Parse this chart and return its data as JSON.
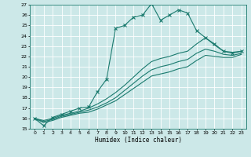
{
  "title": "",
  "xlabel": "Humidex (Indice chaleur)",
  "xlim": [
    -0.5,
    23.5
  ],
  "ylim": [
    15,
    27
  ],
  "xticks": [
    0,
    1,
    2,
    3,
    4,
    5,
    6,
    7,
    8,
    9,
    10,
    11,
    12,
    13,
    14,
    15,
    16,
    17,
    18,
    19,
    20,
    21,
    22,
    23
  ],
  "yticks": [
    15,
    16,
    17,
    18,
    19,
    20,
    21,
    22,
    23,
    24,
    25,
    26,
    27
  ],
  "bg_color": "#cce8e8",
  "line_color": "#1a7a6e",
  "grid_color": "#ffffff",
  "lines": [
    {
      "x": [
        0,
        1,
        2,
        3,
        4,
        5,
        6,
        7,
        8,
        9,
        10,
        11,
        12,
        13,
        14,
        15,
        16,
        17,
        18,
        19,
        20,
        21,
        22,
        23
      ],
      "y": [
        16.0,
        15.3,
        16.1,
        16.4,
        16.7,
        17.0,
        17.1,
        18.6,
        19.8,
        24.7,
        25.0,
        25.8,
        26.0,
        27.1,
        25.5,
        26.0,
        26.5,
        26.2,
        24.5,
        23.8,
        23.2,
        22.5,
        22.3,
        22.5
      ],
      "marker": "x"
    },
    {
      "x": [
        0,
        1,
        2,
        3,
        4,
        5,
        6,
        7,
        8,
        9,
        10,
        11,
        12,
        13,
        14,
        15,
        16,
        17,
        18,
        19,
        20,
        21,
        22,
        23
      ],
      "y": [
        16.0,
        15.8,
        16.0,
        16.3,
        16.5,
        16.7,
        17.0,
        17.4,
        17.9,
        18.5,
        19.2,
        20.0,
        20.8,
        21.5,
        21.8,
        22.0,
        22.3,
        22.5,
        23.2,
        23.8,
        23.1,
        22.5,
        22.4,
        22.5
      ],
      "marker": null
    },
    {
      "x": [
        0,
        1,
        2,
        3,
        4,
        5,
        6,
        7,
        8,
        9,
        10,
        11,
        12,
        13,
        14,
        15,
        16,
        17,
        18,
        19,
        20,
        21,
        22,
        23
      ],
      "y": [
        16.0,
        15.7,
        15.9,
        16.2,
        16.4,
        16.6,
        16.8,
        17.1,
        17.5,
        18.0,
        18.7,
        19.4,
        20.1,
        20.7,
        21.0,
        21.2,
        21.5,
        21.7,
        22.3,
        22.7,
        22.5,
        22.2,
        22.1,
        22.3
      ],
      "marker": null
    },
    {
      "x": [
        0,
        1,
        2,
        3,
        4,
        5,
        6,
        7,
        8,
        9,
        10,
        11,
        12,
        13,
        14,
        15,
        16,
        17,
        18,
        19,
        20,
        21,
        22,
        23
      ],
      "y": [
        16.0,
        15.6,
        15.8,
        16.1,
        16.3,
        16.5,
        16.6,
        16.9,
        17.3,
        17.7,
        18.3,
        18.9,
        19.5,
        20.1,
        20.3,
        20.5,
        20.8,
        21.0,
        21.6,
        22.1,
        22.0,
        21.9,
        21.9,
        22.2
      ],
      "marker": null
    }
  ]
}
